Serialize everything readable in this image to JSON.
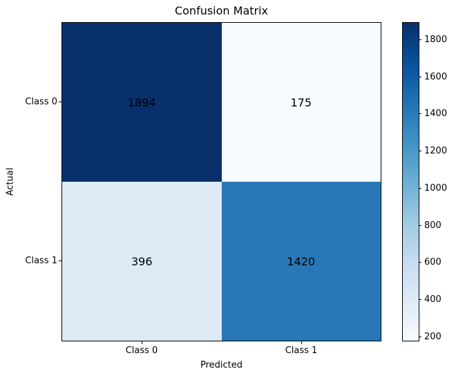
{
  "chart_data": {
    "type": "heatmap",
    "title": "Confusion Matrix",
    "xlabel": "Predicted",
    "ylabel": "Actual",
    "x_categories": [
      "Class 0",
      "Class 1"
    ],
    "y_categories": [
      "Class 0",
      "Class 1"
    ],
    "matrix": [
      [
        1894,
        175
      ],
      [
        396,
        1420
      ]
    ],
    "vmin": 175,
    "vmax": 1894,
    "colormap": "Blues",
    "value_color": "#000000",
    "cell_colors": [
      [
        "#08306b",
        "#f7fbff"
      ],
      [
        "#ddeaf6",
        "#2878b8"
      ]
    ],
    "colorbar": {
      "ticks": [
        200,
        400,
        600,
        800,
        1000,
        1200,
        1400,
        1600,
        1800
      ],
      "gradient_stops": [
        "#f7fbff",
        "#deebf7",
        "#c6dbef",
        "#9ecae1",
        "#6baed6",
        "#4292c6",
        "#2171b5",
        "#08519c",
        "#08306b"
      ]
    },
    "grid": "off",
    "legend": "none"
  }
}
